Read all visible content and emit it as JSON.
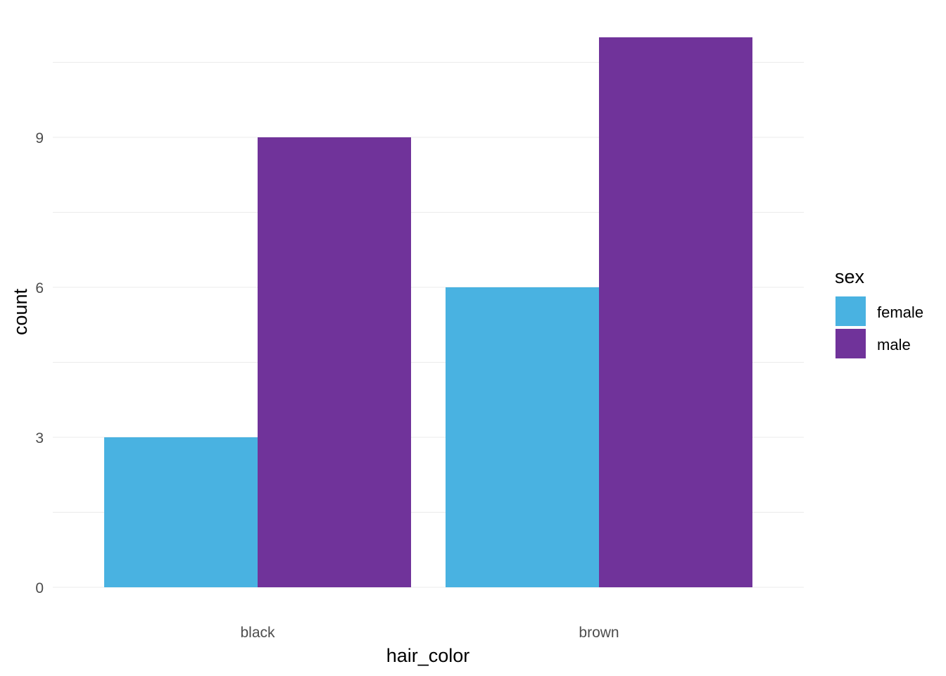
{
  "chart_data": {
    "type": "bar",
    "categories": [
      "black",
      "brown"
    ],
    "series": [
      {
        "name": "female",
        "values": [
          3,
          6
        ],
        "color": "#49B2E1"
      },
      {
        "name": "male",
        "values": [
          9,
          11
        ],
        "color": "#70339A"
      }
    ],
    "xlabel": "hair_color",
    "ylabel": "count",
    "ylim": [
      0,
      11
    ],
    "yticks": [
      0,
      3,
      6,
      9
    ],
    "grid": true,
    "legend": {
      "title": "sex",
      "placement": "right"
    },
    "bar_layout": "dodge"
  }
}
